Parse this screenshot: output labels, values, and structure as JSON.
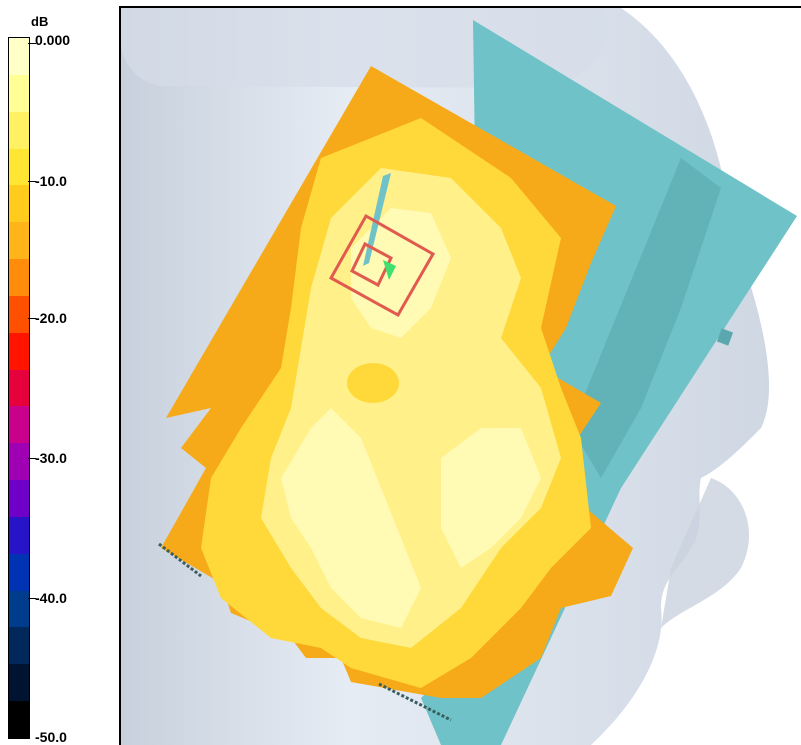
{
  "colorbar": {
    "unit": "dB",
    "labels": [
      "0.000",
      "-10.0",
      "-20.0",
      "-30.0",
      "-40.0",
      "-50.0"
    ],
    "min": -50.0,
    "max": 0.0,
    "bands": [
      "#ffffc8",
      "#ffff96",
      "#fff064",
      "#ffe632",
      "#ffcc1e",
      "#ffb419",
      "#ff8c0a",
      "#ff5000",
      "#ff1400",
      "#e6003c",
      "#c8008c",
      "#a000b4",
      "#6e00c8",
      "#2814c8",
      "#0032b4",
      "#003c8c",
      "#00285a",
      "#001432",
      "#000000"
    ]
  },
  "viewport": {
    "colors": {
      "background": "#ffffff",
      "head": "#d4dbe6",
      "head_highlight": "#e8eef6",
      "phantom_plate": "#6ec2c8",
      "phantom_plate_shade": "#5aa8ae",
      "field_orange": "#f6aa1a",
      "field_yellow": "#ffd83a",
      "field_light": "#fff08a",
      "field_pale": "#fffab4",
      "marker": "#e05a50",
      "probe": "#40e070"
    }
  }
}
